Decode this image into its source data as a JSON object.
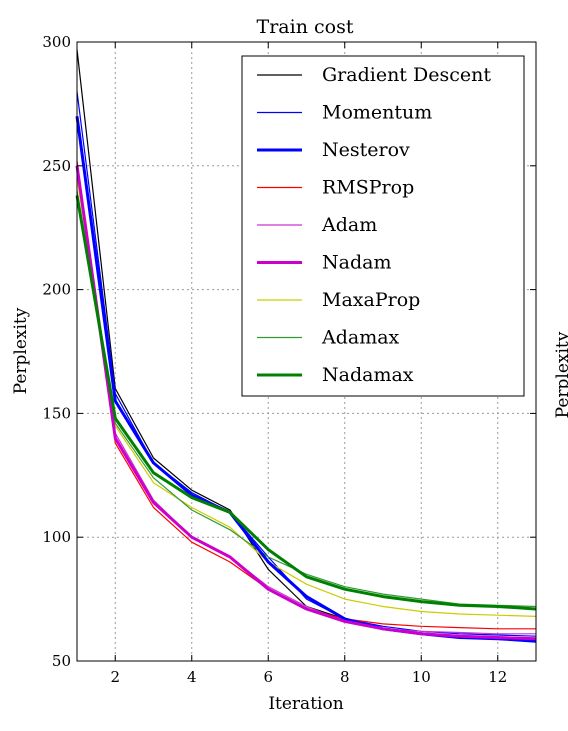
{
  "chart_data": {
    "type": "line",
    "title": "Train cost",
    "xlabel": "Iteration",
    "ylabel": "Perplexity",
    "second_panel_ylabel_fragment": "Perplexity",
    "xlim": [
      1,
      13
    ],
    "ylim": [
      50,
      300
    ],
    "xticks": [
      2,
      4,
      6,
      8,
      10,
      12
    ],
    "yticks": [
      50,
      100,
      150,
      200,
      250,
      300
    ],
    "grid": true,
    "legend_position": "top-right",
    "x": [
      1,
      2,
      3,
      4,
      5,
      6,
      7,
      8,
      9,
      10,
      11,
      12,
      13
    ],
    "series": [
      {
        "name": "Gradient Descent",
        "color": "#000000",
        "width": 1.2,
        "values": [
          297,
          160,
          132,
          119,
          111,
          87,
          72,
          67,
          63,
          61,
          60,
          59.5,
          59
        ]
      },
      {
        "name": "Momentum",
        "color": "#0000ff",
        "width": 1.2,
        "values": [
          280,
          158,
          130,
          118,
          110,
          92,
          75,
          67,
          64,
          62,
          61,
          60.5,
          60
        ]
      },
      {
        "name": "Nesterov",
        "color": "#0000ff",
        "width": 3,
        "values": [
          270,
          155,
          130,
          117,
          110,
          90,
          76,
          67,
          63,
          61,
          59.5,
          59,
          58
        ]
      },
      {
        "name": "RMSProp",
        "color": "#ff0000",
        "width": 1.2,
        "values": [
          252,
          138,
          112,
          98,
          90,
          79,
          71,
          67,
          65,
          64,
          63.5,
          63,
          63
        ]
      },
      {
        "name": "Adam",
        "color": "#cc33cc",
        "width": 1.2,
        "values": [
          250,
          142,
          115,
          100,
          92,
          80,
          72,
          66,
          63,
          62,
          61.5,
          61,
          61
        ]
      },
      {
        "name": "Nadam",
        "color": "#cc00cc",
        "width": 3,
        "values": [
          250,
          140,
          114,
          100,
          92,
          79,
          71,
          66,
          63,
          61,
          60,
          59.5,
          59
        ]
      },
      {
        "name": "MaxaProp",
        "color": "#cccc00",
        "width": 1.2,
        "values": [
          245,
          145,
          122,
          112,
          104,
          90,
          81,
          75,
          72,
          70,
          69,
          68.5,
          68
        ]
      },
      {
        "name": "Adamax",
        "color": "#339933",
        "width": 1.2,
        "values": [
          240,
          146,
          124,
          111,
          103,
          92,
          85,
          80,
          77,
          75,
          73,
          72.5,
          72
        ]
      },
      {
        "name": "Nadamax",
        "color": "#008000",
        "width": 3,
        "values": [
          238,
          148,
          126,
          116,
          110,
          95,
          84,
          79,
          76,
          74,
          72.5,
          72,
          71
        ]
      }
    ]
  }
}
